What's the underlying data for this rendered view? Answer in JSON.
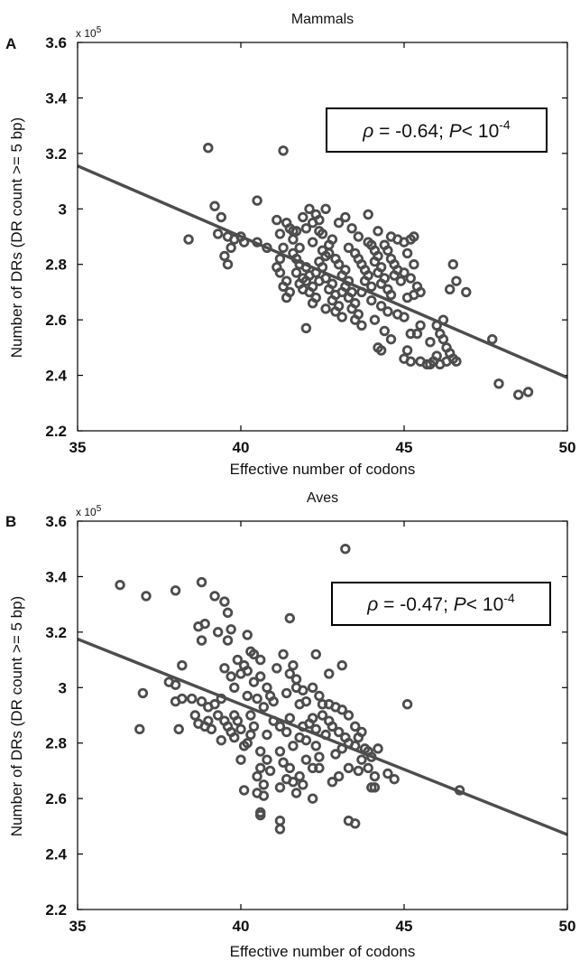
{
  "chart_data": [
    {
      "panel": "A",
      "type": "scatter",
      "title": "Mammals",
      "xlabel": "Effective number of codons",
      "ylabel": "Number of DRs (DR count >= 5 bp)",
      "y_multiplier": "x 10",
      "y_multiplier_exp": "5",
      "xlim": [
        35,
        50
      ],
      "ylim": [
        2.2,
        3.6
      ],
      "xticks": [
        35,
        40,
        45,
        50
      ],
      "xtick_labels": [
        "35",
        "40",
        "45",
        "50"
      ],
      "yticks": [
        2.2,
        2.4,
        2.6,
        2.8,
        3.0,
        3.2,
        3.4,
        3.6
      ],
      "ytick_labels": [
        "2.2",
        "2.4",
        "2.6",
        "2.8",
        "3",
        "3.2",
        "3.4",
        "3.6"
      ],
      "annotation": {
        "rho_symbol": "ρ",
        "rho_text": " = -0.64; ",
        "p_symbol": "P",
        "p_text": "< 10",
        "p_exp": "-4"
      },
      "fit_line": {
        "x": [
          35,
          50
        ],
        "y": [
          3.155,
          2.392
        ]
      },
      "points": [
        [
          39.0,
          3.22
        ],
        [
          41.3,
          3.21
        ],
        [
          38.4,
          2.89
        ],
        [
          39.2,
          3.01
        ],
        [
          39.4,
          2.97
        ],
        [
          39.3,
          2.91
        ],
        [
          39.6,
          2.9
        ],
        [
          39.5,
          2.83
        ],
        [
          39.6,
          2.8
        ],
        [
          39.7,
          2.86
        ],
        [
          39.8,
          2.89
        ],
        [
          40.0,
          2.9
        ],
        [
          40.1,
          2.88
        ],
        [
          40.5,
          3.03
        ],
        [
          40.5,
          2.88
        ],
        [
          40.8,
          2.86
        ],
        [
          41.1,
          2.96
        ],
        [
          41.4,
          2.95
        ],
        [
          41.5,
          2.93
        ],
        [
          41.2,
          2.91
        ],
        [
          41.6,
          2.92
        ],
        [
          41.6,
          2.89
        ],
        [
          41.3,
          2.86
        ],
        [
          41.2,
          2.82
        ],
        [
          41.1,
          2.79
        ],
        [
          41.2,
          2.77
        ],
        [
          41.4,
          2.74
        ],
        [
          41.3,
          2.72
        ],
        [
          41.5,
          2.7
        ],
        [
          41.4,
          2.68
        ],
        [
          41.6,
          2.84
        ],
        [
          41.7,
          2.82
        ],
        [
          41.8,
          2.8
        ],
        [
          41.7,
          2.77
        ],
        [
          41.9,
          2.75
        ],
        [
          41.8,
          2.73
        ],
        [
          41.9,
          2.71
        ],
        [
          42.0,
          2.79
        ],
        [
          42.1,
          2.76
        ],
        [
          42.0,
          2.74
        ],
        [
          42.2,
          2.72
        ],
        [
          42.1,
          2.7
        ],
        [
          42.3,
          2.68
        ],
        [
          42.2,
          2.66
        ],
        [
          42.4,
          2.74
        ],
        [
          42.3,
          2.77
        ],
        [
          42.5,
          2.79
        ],
        [
          42.4,
          2.81
        ],
        [
          42.6,
          2.83
        ],
        [
          42.5,
          2.85
        ],
        [
          42.7,
          2.87
        ],
        [
          42.6,
          2.75
        ],
        [
          42.8,
          2.73
        ],
        [
          42.7,
          2.71
        ],
        [
          42.9,
          2.69
        ],
        [
          42.8,
          2.67
        ],
        [
          43.0,
          2.65
        ],
        [
          42.9,
          2.63
        ],
        [
          43.1,
          2.61
        ],
        [
          42.1,
          3.0
        ],
        [
          42.3,
          2.98
        ],
        [
          42.2,
          2.95
        ],
        [
          42.4,
          2.92
        ],
        [
          42.6,
          3.0
        ],
        [
          42.5,
          2.91
        ],
        [
          41.9,
          2.97
        ],
        [
          42.0,
          2.93
        ],
        [
          42.7,
          2.84
        ],
        [
          42.9,
          2.82
        ],
        [
          43.0,
          2.8
        ],
        [
          43.2,
          2.78
        ],
        [
          43.1,
          2.76
        ],
        [
          43.3,
          2.74
        ],
        [
          43.2,
          2.72
        ],
        [
          43.4,
          2.7
        ],
        [
          43.3,
          2.68
        ],
        [
          43.5,
          2.66
        ],
        [
          43.4,
          2.64
        ],
        [
          43.6,
          2.62
        ],
        [
          43.5,
          2.6
        ],
        [
          43.7,
          2.58
        ],
        [
          43.3,
          2.86
        ],
        [
          43.4,
          2.93
        ],
        [
          43.5,
          2.84
        ],
        [
          43.6,
          2.82
        ],
        [
          43.7,
          2.8
        ],
        [
          43.8,
          2.78
        ],
        [
          43.9,
          2.76
        ],
        [
          43.8,
          2.74
        ],
        [
          44.0,
          2.72
        ],
        [
          43.9,
          2.98
        ],
        [
          44.0,
          2.87
        ],
        [
          44.1,
          2.85
        ],
        [
          44.2,
          2.83
        ],
        [
          44.1,
          2.81
        ],
        [
          44.3,
          2.79
        ],
        [
          44.2,
          2.77
        ],
        [
          44.4,
          2.75
        ],
        [
          44.3,
          2.73
        ],
        [
          44.5,
          2.71
        ],
        [
          44.2,
          2.92
        ],
        [
          44.6,
          2.9
        ],
        [
          44.4,
          2.87
        ],
        [
          44.5,
          2.85
        ],
        [
          44.6,
          2.82
        ],
        [
          44.7,
          2.8
        ],
        [
          44.8,
          2.78
        ],
        [
          44.7,
          2.76
        ],
        [
          44.9,
          2.74
        ],
        [
          44.6,
          2.69
        ],
        [
          44.3,
          2.65
        ],
        [
          44.5,
          2.63
        ],
        [
          44.1,
          2.6
        ],
        [
          44.4,
          2.56
        ],
        [
          44.6,
          2.53
        ],
        [
          44.2,
          2.5
        ],
        [
          44.3,
          2.49
        ],
        [
          44.8,
          2.89
        ],
        [
          45.0,
          2.88
        ],
        [
          45.2,
          2.89
        ],
        [
          45.3,
          2.9
        ],
        [
          45.1,
          2.84
        ],
        [
          45.3,
          2.8
        ],
        [
          45.0,
          2.77
        ],
        [
          45.2,
          2.75
        ],
        [
          45.4,
          2.72
        ],
        [
          45.1,
          2.68
        ],
        [
          45.3,
          2.69
        ],
        [
          45.5,
          2.7
        ],
        [
          45.0,
          2.61
        ],
        [
          44.8,
          2.62
        ],
        [
          45.2,
          2.55
        ],
        [
          45.4,
          2.55
        ],
        [
          45.5,
          2.58
        ],
        [
          45.1,
          2.49
        ],
        [
          45.0,
          2.46
        ],
        [
          45.2,
          2.45
        ],
        [
          45.5,
          2.45
        ],
        [
          45.7,
          2.44
        ],
        [
          45.8,
          2.44
        ],
        [
          45.9,
          2.45
        ],
        [
          46.0,
          2.47
        ],
        [
          45.8,
          2.52
        ],
        [
          46.1,
          2.55
        ],
        [
          46.2,
          2.53
        ],
        [
          46.0,
          2.58
        ],
        [
          46.2,
          2.6
        ],
        [
          46.5,
          2.8
        ],
        [
          46.6,
          2.74
        ],
        [
          46.4,
          2.71
        ],
        [
          46.9,
          2.7
        ],
        [
          46.3,
          2.5
        ],
        [
          46.4,
          2.48
        ],
        [
          46.5,
          2.46
        ],
        [
          46.6,
          2.45
        ],
        [
          46.1,
          2.44
        ],
        [
          46.3,
          2.45
        ],
        [
          47.7,
          2.53
        ],
        [
          47.9,
          2.37
        ],
        [
          48.5,
          2.33
        ],
        [
          48.8,
          2.34
        ],
        [
          42.0,
          2.57
        ],
        [
          42.2,
          2.88
        ],
        [
          41.8,
          2.86
        ],
        [
          43.0,
          2.95
        ],
        [
          43.2,
          2.97
        ],
        [
          42.8,
          2.89
        ],
        [
          43.6,
          2.9
        ],
        [
          43.9,
          2.88
        ],
        [
          44.0,
          2.67
        ],
        [
          43.7,
          2.7
        ],
        [
          42.6,
          2.64
        ],
        [
          43.1,
          2.7
        ],
        [
          41.7,
          2.92
        ],
        [
          42.4,
          2.96
        ]
      ]
    },
    {
      "panel": "B",
      "type": "scatter",
      "title": "Aves",
      "xlabel": "Effective number of codons",
      "ylabel": "Number of DRs (DR count >= 5 bp)",
      "y_multiplier": "x 10",
      "y_multiplier_exp": "5",
      "xlim": [
        35,
        50
      ],
      "ylim": [
        2.2,
        3.6
      ],
      "xticks": [
        35,
        40,
        45,
        50
      ],
      "xtick_labels": [
        "35",
        "40",
        "45",
        "50"
      ],
      "yticks": [
        2.2,
        2.4,
        2.6,
        2.8,
        3.0,
        3.2,
        3.4,
        3.6
      ],
      "ytick_labels": [
        "2.2",
        "2.4",
        "2.6",
        "2.8",
        "3",
        "3.2",
        "3.4",
        "3.6"
      ],
      "annotation": {
        "rho_symbol": "ρ",
        "rho_text": " = -0.47; ",
        "p_symbol": "P",
        "p_text": "< 10",
        "p_exp": "-4"
      },
      "fit_line": {
        "x": [
          35,
          50
        ],
        "y": [
          3.175,
          2.47
        ]
      },
      "points": [
        [
          36.3,
          3.37
        ],
        [
          37.1,
          3.33
        ],
        [
          38.0,
          3.35
        ],
        [
          38.8,
          3.38
        ],
        [
          39.2,
          3.33
        ],
        [
          39.5,
          3.31
        ],
        [
          39.6,
          3.27
        ],
        [
          38.7,
          3.22
        ],
        [
          38.9,
          3.23
        ],
        [
          38.8,
          3.17
        ],
        [
          39.3,
          3.2
        ],
        [
          39.7,
          3.21
        ],
        [
          39.6,
          3.17
        ],
        [
          40.2,
          3.19
        ],
        [
          40.3,
          3.13
        ],
        [
          40.4,
          3.12
        ],
        [
          40.1,
          3.08
        ],
        [
          40.6,
          3.1
        ],
        [
          37.0,
          2.98
        ],
        [
          36.9,
          2.85
        ],
        [
          37.8,
          3.02
        ],
        [
          38.0,
          3.01
        ],
        [
          38.2,
          3.08
        ],
        [
          38.2,
          2.96
        ],
        [
          38.0,
          2.95
        ],
        [
          38.1,
          2.85
        ],
        [
          38.5,
          2.96
        ],
        [
          38.6,
          2.9
        ],
        [
          38.8,
          2.95
        ],
        [
          38.7,
          2.87
        ],
        [
          39.0,
          2.93
        ],
        [
          38.9,
          2.86
        ],
        [
          39.1,
          2.85
        ],
        [
          39.2,
          2.94
        ],
        [
          39.4,
          2.96
        ],
        [
          39.3,
          2.9
        ],
        [
          39.5,
          2.88
        ],
        [
          39.4,
          2.81
        ],
        [
          39.6,
          2.86
        ],
        [
          39.7,
          2.84
        ],
        [
          39.8,
          2.9
        ],
        [
          39.9,
          2.88
        ],
        [
          39.8,
          2.82
        ],
        [
          40.0,
          2.85
        ],
        [
          40.1,
          2.79
        ],
        [
          40.0,
          2.74
        ],
        [
          40.2,
          2.8
        ],
        [
          40.3,
          2.83
        ],
        [
          40.4,
          2.86
        ],
        [
          40.3,
          2.9
        ],
        [
          40.5,
          2.96
        ],
        [
          40.4,
          3.02
        ],
        [
          39.5,
          3.07
        ],
        [
          39.7,
          3.04
        ],
        [
          39.8,
          3.0
        ],
        [
          40.0,
          3.05
        ],
        [
          39.9,
          3.1
        ],
        [
          40.2,
          3.06
        ],
        [
          40.6,
          3.04
        ],
        [
          40.8,
          3.0
        ],
        [
          40.7,
          2.93
        ],
        [
          40.9,
          2.97
        ],
        [
          41.0,
          2.95
        ],
        [
          41.1,
          3.07
        ],
        [
          41.3,
          3.12
        ],
        [
          41.5,
          3.05
        ],
        [
          41.6,
          3.08
        ],
        [
          41.4,
          2.98
        ],
        [
          41.7,
          3.0
        ],
        [
          41.9,
          2.99
        ],
        [
          41.8,
          2.94
        ],
        [
          41.7,
          3.03
        ],
        [
          42.0,
          2.95
        ],
        [
          42.2,
          3.0
        ],
        [
          42.4,
          2.97
        ],
        [
          42.2,
          2.89
        ],
        [
          41.9,
          2.86
        ],
        [
          42.1,
          2.87
        ],
        [
          42.3,
          2.85
        ],
        [
          42.5,
          2.9
        ],
        [
          42.7,
          2.88
        ],
        [
          42.6,
          2.83
        ],
        [
          42.8,
          2.86
        ],
        [
          43.0,
          2.84
        ],
        [
          43.2,
          2.82
        ],
        [
          43.1,
          2.78
        ],
        [
          43.3,
          2.8
        ],
        [
          43.5,
          2.79
        ],
        [
          43.6,
          2.82
        ],
        [
          43.8,
          2.78
        ],
        [
          43.7,
          2.74
        ],
        [
          44.0,
          2.75
        ],
        [
          44.2,
          2.78
        ],
        [
          43.9,
          2.71
        ],
        [
          43.6,
          2.7
        ],
        [
          42.9,
          2.93
        ],
        [
          43.1,
          2.92
        ],
        [
          43.3,
          2.9
        ],
        [
          42.5,
          2.94
        ],
        [
          42.7,
          2.94
        ],
        [
          42.3,
          2.79
        ],
        [
          42.0,
          2.81
        ],
        [
          41.8,
          2.82
        ],
        [
          41.6,
          2.79
        ],
        [
          41.4,
          2.84
        ],
        [
          41.2,
          2.86
        ],
        [
          41.0,
          2.88
        ],
        [
          40.8,
          2.83
        ],
        [
          40.6,
          2.77
        ],
        [
          40.8,
          2.74
        ],
        [
          40.6,
          2.71
        ],
        [
          40.5,
          2.68
        ],
        [
          40.7,
          2.65
        ],
        [
          40.9,
          2.7
        ],
        [
          40.1,
          2.63
        ],
        [
          40.5,
          2.62
        ],
        [
          40.7,
          2.61
        ],
        [
          40.6,
          2.54
        ],
        [
          41.3,
          2.73
        ],
        [
          41.5,
          2.71
        ],
        [
          41.4,
          2.67
        ],
        [
          41.2,
          2.64
        ],
        [
          41.6,
          2.66
        ],
        [
          41.8,
          2.68
        ],
        [
          41.9,
          2.65
        ],
        [
          41.7,
          2.62
        ],
        [
          41.2,
          2.77
        ],
        [
          42.2,
          2.71
        ],
        [
          42.4,
          2.71
        ],
        [
          42.2,
          2.6
        ],
        [
          42.8,
          2.66
        ],
        [
          43.0,
          2.68
        ],
        [
          42.0,
          2.74
        ],
        [
          42.4,
          2.75
        ],
        [
          43.5,
          2.86
        ],
        [
          43.7,
          2.84
        ],
        [
          43.9,
          2.77
        ],
        [
          43.3,
          2.71
        ],
        [
          43.1,
          3.08
        ],
        [
          42.3,
          3.12
        ],
        [
          42.7,
          3.05
        ],
        [
          41.5,
          3.25
        ],
        [
          43.2,
          3.5
        ],
        [
          43.3,
          2.52
        ],
        [
          43.5,
          2.51
        ],
        [
          41.2,
          2.52
        ],
        [
          41.2,
          2.49
        ],
        [
          40.6,
          2.55
        ],
        [
          44.0,
          2.64
        ],
        [
          44.1,
          2.64
        ],
        [
          44.5,
          2.69
        ],
        [
          44.7,
          2.67
        ],
        [
          45.1,
          2.94
        ],
        [
          46.7,
          2.63
        ],
        [
          40.2,
          2.97
        ],
        [
          39.0,
          2.88
        ],
        [
          41.5,
          2.89
        ],
        [
          42.9,
          2.76
        ],
        [
          44.1,
          2.68
        ]
      ]
    }
  ]
}
